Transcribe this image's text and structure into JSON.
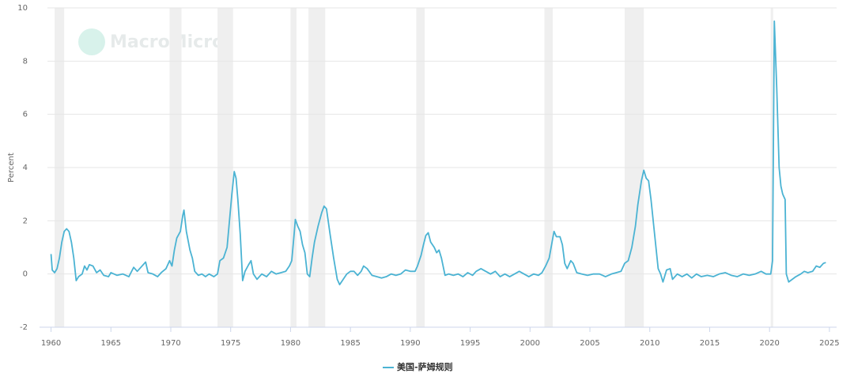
{
  "chart_data": {
    "type": "line",
    "watermark": "MacroMicro",
    "y_label": "Percent",
    "x": [
      1960.0,
      1960.1,
      1960.3,
      1960.5,
      1960.7,
      1960.9,
      1961.1,
      1961.3,
      1961.5,
      1961.7,
      1961.9,
      1962.1,
      1962.3,
      1962.6,
      1962.8,
      1963.0,
      1963.2,
      1963.5,
      1963.8,
      1964.1,
      1964.4,
      1964.8,
      1965.0,
      1965.5,
      1966.0,
      1966.5,
      1966.9,
      1967.2,
      1967.6,
      1967.9,
      1968.1,
      1968.5,
      1968.9,
      1969.2,
      1969.6,
      1969.9,
      1970.1,
      1970.3,
      1970.5,
      1970.8,
      1971.0,
      1971.1,
      1971.3,
      1971.6,
      1971.8,
      1972.0,
      1972.3,
      1972.6,
      1972.9,
      1973.2,
      1973.6,
      1973.9,
      1974.1,
      1974.4,
      1974.7,
      1974.9,
      1975.1,
      1975.3,
      1975.45,
      1975.6,
      1975.8,
      1976.0,
      1976.2,
      1976.5,
      1976.7,
      1976.9,
      1977.2,
      1977.6,
      1978.0,
      1978.4,
      1978.8,
      1979.2,
      1979.6,
      1979.9,
      1980.1,
      1980.3,
      1980.4,
      1980.6,
      1980.8,
      1981.0,
      1981.2,
      1981.4,
      1981.6,
      1981.8,
      1982.0,
      1982.3,
      1982.6,
      1982.8,
      1983.0,
      1983.3,
      1983.6,
      1983.9,
      1984.1,
      1984.4,
      1984.7,
      1985.0,
      1985.3,
      1985.6,
      1985.9,
      1986.1,
      1986.4,
      1986.8,
      1987.2,
      1987.6,
      1988.0,
      1988.4,
      1988.8,
      1989.2,
      1989.6,
      1990.0,
      1990.4,
      1990.6,
      1990.9,
      1991.1,
      1991.3,
      1991.5,
      1991.7,
      1992.0,
      1992.2,
      1992.4,
      1992.6,
      1992.9,
      1993.2,
      1993.6,
      1994.0,
      1994.4,
      1994.8,
      1995.2,
      1995.5,
      1995.9,
      1996.3,
      1996.7,
      1997.1,
      1997.5,
      1997.9,
      1998.3,
      1998.7,
      1999.1,
      1999.5,
      1999.9,
      2000.3,
      2000.7,
      2001.0,
      2001.3,
      2001.6,
      2001.8,
      2002.0,
      2002.2,
      2002.5,
      2002.7,
      2002.9,
      2003.1,
      2003.4,
      2003.6,
      2003.9,
      2004.3,
      2004.8,
      2005.3,
      2005.8,
      2006.3,
      2006.8,
      2007.2,
      2007.6,
      2007.9,
      2008.2,
      2008.5,
      2008.8,
      2009.0,
      2009.3,
      2009.5,
      2009.7,
      2009.9,
      2010.1,
      2010.4,
      2010.7,
      2010.9,
      2011.1,
      2011.4,
      2011.7,
      2011.9,
      2012.3,
      2012.7,
      2013.1,
      2013.5,
      2013.9,
      2014.3,
      2014.8,
      2015.3,
      2015.8,
      2016.3,
      2016.8,
      2017.3,
      2017.8,
      2018.3,
      2018.8,
      2019.3,
      2019.7,
      2020.1,
      2020.25,
      2020.4,
      2020.6,
      2020.8,
      2020.95,
      2021.1,
      2021.3,
      2021.4,
      2021.6,
      2021.9,
      2022.2,
      2022.6,
      2022.9,
      2023.2,
      2023.6,
      2023.9,
      2024.2,
      2024.5,
      2024.7
    ],
    "series": [
      {
        "name": "美国-萨姆规则",
        "color": "#4bb3d3",
        "values": [
          0.75,
          0.15,
          0.05,
          0.2,
          0.6,
          1.2,
          1.6,
          1.7,
          1.6,
          1.2,
          0.6,
          -0.25,
          -0.1,
          0.0,
          0.3,
          0.15,
          0.35,
          0.3,
          0.05,
          0.15,
          -0.05,
          -0.1,
          0.05,
          -0.05,
          0.0,
          -0.1,
          0.25,
          0.1,
          0.3,
          0.45,
          0.05,
          0.0,
          -0.1,
          0.05,
          0.2,
          0.5,
          0.3,
          0.9,
          1.35,
          1.6,
          2.2,
          2.4,
          1.6,
          0.9,
          0.6,
          0.1,
          -0.05,
          0.0,
          -0.1,
          0.0,
          -0.1,
          0.0,
          0.5,
          0.6,
          1.0,
          2.0,
          3.0,
          3.85,
          3.6,
          2.8,
          1.5,
          -0.25,
          0.1,
          0.35,
          0.5,
          0.0,
          -0.2,
          0.0,
          -0.1,
          0.1,
          0.0,
          0.05,
          0.1,
          0.3,
          0.5,
          1.5,
          2.05,
          1.8,
          1.6,
          1.1,
          0.8,
          0.0,
          -0.1,
          0.6,
          1.2,
          1.8,
          2.3,
          2.55,
          2.45,
          1.5,
          0.6,
          -0.2,
          -0.4,
          -0.2,
          0.0,
          0.1,
          0.1,
          -0.05,
          0.1,
          0.3,
          0.2,
          -0.05,
          -0.1,
          -0.15,
          -0.1,
          0.0,
          -0.05,
          0.0,
          0.15,
          0.1,
          0.1,
          0.3,
          0.7,
          1.1,
          1.45,
          1.55,
          1.2,
          1.0,
          0.8,
          0.9,
          0.6,
          -0.05,
          0.0,
          -0.05,
          0.0,
          -0.1,
          0.05,
          -0.05,
          0.1,
          0.2,
          0.1,
          0.0,
          0.1,
          -0.1,
          0.0,
          -0.1,
          0.0,
          0.1,
          0.0,
          -0.1,
          0.0,
          -0.05,
          0.05,
          0.3,
          0.6,
          1.1,
          1.6,
          1.4,
          1.4,
          1.1,
          0.4,
          0.2,
          0.5,
          0.4,
          0.05,
          0.0,
          -0.05,
          0.0,
          0.0,
          -0.1,
          0.0,
          0.05,
          0.1,
          0.4,
          0.5,
          1.0,
          1.8,
          2.6,
          3.5,
          3.9,
          3.6,
          3.5,
          2.8,
          1.5,
          0.2,
          0.0,
          -0.3,
          0.15,
          0.2,
          -0.2,
          0.0,
          -0.1,
          0.0,
          -0.15,
          0.0,
          -0.1,
          -0.05,
          -0.1,
          0.0,
          0.05,
          -0.05,
          -0.1,
          0.0,
          -0.05,
          0.0,
          0.1,
          0.0,
          0.0,
          0.5,
          9.5,
          7.0,
          4.0,
          3.3,
          3.0,
          2.8,
          0.0,
          -0.3,
          -0.2,
          -0.1,
          0.0,
          0.1,
          0.05,
          0.1,
          0.3,
          0.25,
          0.4,
          0.43
        ]
      }
    ],
    "recessions": [
      [
        1960.3,
        1961.1
      ],
      [
        1969.9,
        1970.9
      ],
      [
        1973.9,
        1975.2
      ],
      [
        1980.0,
        1980.5
      ],
      [
        1981.5,
        1982.9
      ],
      [
        1990.5,
        1991.2
      ],
      [
        2001.2,
        2001.9
      ],
      [
        2007.9,
        2009.5
      ],
      [
        2020.1,
        2020.3
      ]
    ],
    "xlim": [
      1959.7,
      2025.6
    ],
    "xticks": [
      1960,
      1965,
      1970,
      1975,
      1980,
      1985,
      1990,
      1995,
      2000,
      2005,
      2010,
      2015,
      2020,
      2025
    ],
    "ylim": [
      -2,
      10
    ],
    "yticks": [
      -2,
      0,
      2,
      4,
      6,
      8,
      10
    ],
    "grid": true
  }
}
